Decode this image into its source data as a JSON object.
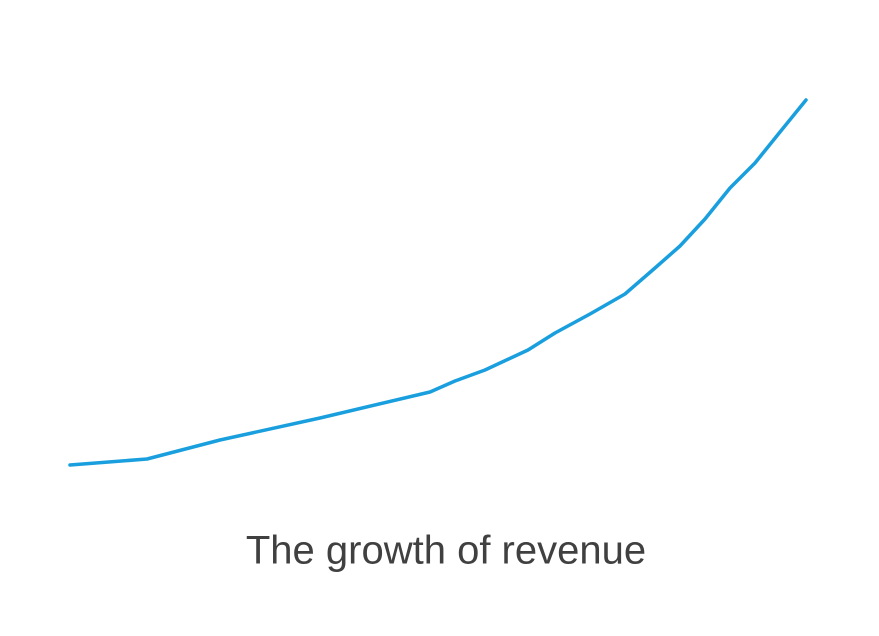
{
  "chart_data": {
    "type": "line",
    "title": "The growth of revenue",
    "x": [
      0,
      77,
      150,
      250,
      360,
      385,
      415,
      458,
      485,
      520,
      555,
      585,
      610,
      635,
      660,
      685,
      710,
      736
    ],
    "values": [
      0,
      6,
      25,
      47,
      73,
      84,
      95,
      115,
      132,
      151,
      171,
      197,
      219,
      246,
      277,
      302,
      333,
      365
    ],
    "color": "#1a9fde"
  }
}
